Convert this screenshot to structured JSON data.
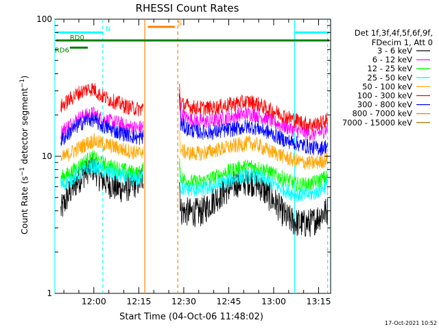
{
  "chart_data": {
    "type": "line",
    "title": "RHESSI Count Rates",
    "xlabel": "Start Time (04-Oct-06 11:48:02)",
    "ylabel_main": "Count Rate (s",
    "ylabel_sup1": "−1",
    "ylabel_mid": " detector segment",
    "ylabel_sup2": "−1",
    "ylabel_end": ")",
    "yscale": "log",
    "ylim": [
      1,
      100
    ],
    "y_ticks": [
      {
        "value": 1,
        "label": "1"
      },
      {
        "value": 10,
        "label": "10"
      },
      {
        "value": 100,
        "label": "100"
      }
    ],
    "xlim_minutes": [
      -13,
      79
    ],
    "x_ticks": [
      {
        "minute": 0,
        "label": "12:00"
      },
      {
        "minute": 15,
        "label": "12:15"
      },
      {
        "minute": 30,
        "label": "12:30"
      },
      {
        "minute": 45,
        "label": "12:45"
      },
      {
        "minute": 60,
        "label": "13:00"
      },
      {
        "minute": 75,
        "label": "13:15"
      }
    ],
    "gap_minutes": [
      17,
      28
    ],
    "legend_header": [
      "Det 1f,3f,4f,5f,6f,9f,",
      "FDecim 1, Att 0"
    ],
    "legend_placement": "right",
    "series": [
      {
        "name": "3 - 6 keV",
        "color": "#000000",
        "points": [
          [
            -11,
            4.0
          ],
          [
            -8,
            5.5
          ],
          [
            -5,
            6.8
          ],
          [
            -2,
            8.0
          ],
          [
            0,
            8.3
          ],
          [
            2,
            7.0
          ],
          [
            5,
            6.3
          ],
          [
            8,
            5.8
          ],
          [
            11,
            5.9
          ],
          [
            15,
            6.5
          ],
          [
            16.5,
            7.2
          ],
          [
            28.5,
            7.0
          ],
          [
            29,
            4.0
          ],
          [
            32,
            3.9
          ],
          [
            36,
            3.9
          ],
          [
            40,
            4.8
          ],
          [
            44,
            5.6
          ],
          [
            48,
            6.4
          ],
          [
            52,
            6.6
          ],
          [
            55,
            6.2
          ],
          [
            58,
            5.2
          ],
          [
            61,
            4.5
          ],
          [
            64,
            3.6
          ],
          [
            67,
            3.3
          ],
          [
            70,
            3.2
          ],
          [
            73,
            3.3
          ],
          [
            76,
            3.8
          ],
          [
            78,
            4.0
          ]
        ]
      },
      {
        "name": "6 - 12 keV",
        "color": "#ff00ff",
        "points": [
          [
            -11,
            15.0
          ],
          [
            -8,
            17.0
          ],
          [
            -5,
            19.0
          ],
          [
            -2,
            20.0
          ],
          [
            0,
            20.5
          ],
          [
            2,
            19.0
          ],
          [
            5,
            18.0
          ],
          [
            8,
            17.5
          ],
          [
            11,
            16.5
          ],
          [
            15,
            16.0
          ],
          [
            16.5,
            16.5
          ],
          [
            28.5,
            30.0
          ],
          [
            29,
            20.0
          ],
          [
            32,
            18.5
          ],
          [
            36,
            18.0
          ],
          [
            40,
            18.0
          ],
          [
            44,
            19.0
          ],
          [
            48,
            20.0
          ],
          [
            52,
            20.5
          ],
          [
            55,
            20.0
          ],
          [
            58,
            18.5
          ],
          [
            61,
            17.5
          ],
          [
            64,
            16.5
          ],
          [
            67,
            15.5
          ],
          [
            70,
            15.0
          ],
          [
            73,
            14.5
          ],
          [
            76,
            15.0
          ],
          [
            78,
            16.0
          ]
        ]
      },
      {
        "name": "12 - 25 keV",
        "color": "#00ff00",
        "points": [
          [
            -11,
            7.0
          ],
          [
            -8,
            7.5
          ],
          [
            -5,
            8.5
          ],
          [
            -2,
            9.5
          ],
          [
            0,
            9.8
          ],
          [
            2,
            9.0
          ],
          [
            5,
            8.5
          ],
          [
            8,
            8.2
          ],
          [
            11,
            7.8
          ],
          [
            15,
            7.5
          ],
          [
            16.5,
            8.0
          ],
          [
            28.5,
            11.0
          ],
          [
            29,
            7.0
          ],
          [
            32,
            6.5
          ],
          [
            36,
            6.5
          ],
          [
            40,
            7.0
          ],
          [
            44,
            7.6
          ],
          [
            48,
            8.2
          ],
          [
            52,
            8.5
          ],
          [
            55,
            8.2
          ],
          [
            58,
            7.8
          ],
          [
            61,
            7.2
          ],
          [
            64,
            6.8
          ],
          [
            67,
            6.3
          ],
          [
            70,
            6.2
          ],
          [
            73,
            6.3
          ],
          [
            76,
            6.8
          ],
          [
            78,
            7.1
          ]
        ]
      },
      {
        "name": "25 - 50 keV",
        "color": "#00ffff",
        "points": [
          [
            -11,
            6.2
          ],
          [
            -8,
            6.6
          ],
          [
            -5,
            7.5
          ],
          [
            -2,
            8.2
          ],
          [
            0,
            8.5
          ],
          [
            2,
            8.0
          ],
          [
            5,
            7.6
          ],
          [
            8,
            7.3
          ],
          [
            11,
            7.0
          ],
          [
            15,
            6.8
          ],
          [
            16.5,
            7.3
          ],
          [
            28.5,
            9.5
          ],
          [
            29,
            5.8
          ],
          [
            32,
            5.7
          ],
          [
            36,
            5.7
          ],
          [
            40,
            6.0
          ],
          [
            44,
            6.5
          ],
          [
            48,
            7.0
          ],
          [
            52,
            7.2
          ],
          [
            55,
            7.0
          ],
          [
            58,
            6.6
          ],
          [
            61,
            6.1
          ],
          [
            64,
            5.6
          ],
          [
            67,
            5.3
          ],
          [
            70,
            5.2
          ],
          [
            73,
            5.3
          ],
          [
            76,
            5.8
          ],
          [
            78,
            6.2
          ]
        ]
      },
      {
        "name": "50 - 100 keV",
        "color": "#ffa500",
        "points": [
          [
            -11,
            9.5
          ],
          [
            -8,
            10.5
          ],
          [
            -5,
            11.5
          ],
          [
            -2,
            12.5
          ],
          [
            0,
            13.0
          ],
          [
            2,
            12.5
          ],
          [
            5,
            12.0
          ],
          [
            8,
            11.5
          ],
          [
            11,
            11.0
          ],
          [
            15,
            10.5
          ],
          [
            16.5,
            11.0
          ],
          [
            28.5,
            16.0
          ],
          [
            29,
            11.0
          ],
          [
            32,
            10.5
          ],
          [
            36,
            10.5
          ],
          [
            40,
            11.0
          ],
          [
            44,
            11.5
          ],
          [
            48,
            12.0
          ],
          [
            52,
            12.5
          ],
          [
            55,
            12.0
          ],
          [
            58,
            11.0
          ],
          [
            61,
            10.5
          ],
          [
            64,
            9.8
          ],
          [
            67,
            9.3
          ],
          [
            70,
            9.0
          ],
          [
            73,
            8.9
          ],
          [
            76,
            9.2
          ],
          [
            78,
            9.5
          ]
        ]
      },
      {
        "name": "100 - 300 keV",
        "color": "#ff0000",
        "points": [
          [
            -11,
            23.0
          ],
          [
            -8,
            26.0
          ],
          [
            -5,
            29.0
          ],
          [
            -2,
            31.0
          ],
          [
            0,
            31.0
          ],
          [
            2,
            28.0
          ],
          [
            5,
            26.0
          ],
          [
            8,
            24.5
          ],
          [
            11,
            23.0
          ],
          [
            15,
            22.0
          ],
          [
            16.5,
            22.5
          ],
          [
            28.5,
            35.0
          ],
          [
            29,
            24.0
          ],
          [
            32,
            23.0
          ],
          [
            36,
            22.5
          ],
          [
            40,
            22.5
          ],
          [
            44,
            23.5
          ],
          [
            48,
            24.5
          ],
          [
            52,
            25.0
          ],
          [
            55,
            24.0
          ],
          [
            58,
            22.0
          ],
          [
            61,
            21.0
          ],
          [
            64,
            19.5
          ],
          [
            67,
            18.5
          ],
          [
            70,
            17.5
          ],
          [
            73,
            17.0
          ],
          [
            76,
            17.5
          ],
          [
            78,
            18.5
          ]
        ]
      },
      {
        "name": "300 - 800 keV",
        "color": "#0000ff",
        "points": [
          [
            -11,
            13.0
          ],
          [
            -8,
            15.0
          ],
          [
            -5,
            17.0
          ],
          [
            -2,
            18.5
          ],
          [
            0,
            18.5
          ],
          [
            2,
            17.0
          ],
          [
            5,
            16.0
          ],
          [
            8,
            15.0
          ],
          [
            11,
            14.5
          ],
          [
            15,
            13.5
          ],
          [
            16.5,
            14.0
          ],
          [
            28.5,
            28.0
          ],
          [
            29,
            17.0
          ],
          [
            32,
            15.5
          ],
          [
            36,
            15.0
          ],
          [
            40,
            15.0
          ],
          [
            44,
            15.5
          ],
          [
            48,
            16.0
          ],
          [
            52,
            16.5
          ],
          [
            55,
            16.0
          ],
          [
            58,
            15.0
          ],
          [
            61,
            14.0
          ],
          [
            64,
            13.0
          ],
          [
            67,
            12.5
          ],
          [
            70,
            12.0
          ],
          [
            73,
            11.5
          ],
          [
            76,
            11.5
          ],
          [
            78,
            12.0
          ]
        ]
      },
      {
        "name": "800 - 7000 keV",
        "color": "#ff8000",
        "points": []
      },
      {
        "name": "7000 - 15000 keV",
        "color": "#a08000",
        "points": []
      }
    ],
    "attenuator_bars": [
      {
        "label": "N",
        "color": "#00ffff",
        "x0": -13,
        "x1": 3,
        "y": 80
      },
      {
        "label": "",
        "color": "#00ffff",
        "x0": 67,
        "x1": 79,
        "y": 80
      },
      {
        "label": "S",
        "color": "#ff8000",
        "x0": 18,
        "x1": 27,
        "y": 88
      },
      {
        "label": "RD0",
        "color": "#008000",
        "x0": -13,
        "x1": 79,
        "y": 70
      },
      {
        "label": "RD6",
        "color": "#008000",
        "x0": -8,
        "x1": -2,
        "y": 62
      }
    ],
    "vertical_lines": [
      {
        "minute": -13,
        "color": "#00ffff",
        "style": "solid"
      },
      {
        "minute": 3,
        "color": "#00ffff",
        "style": "dashed"
      },
      {
        "minute": 17,
        "color": "#ff8000",
        "style": "solid"
      },
      {
        "minute": 28,
        "color": "#ff8000",
        "style": "dashed"
      },
      {
        "minute": 67,
        "color": "#00ffff",
        "style": "solid"
      },
      {
        "minute": 78,
        "color": "#00ffff",
        "style": "dashed"
      }
    ],
    "timestamp": "17-Oct-2021 10:52",
    "grid": false
  }
}
